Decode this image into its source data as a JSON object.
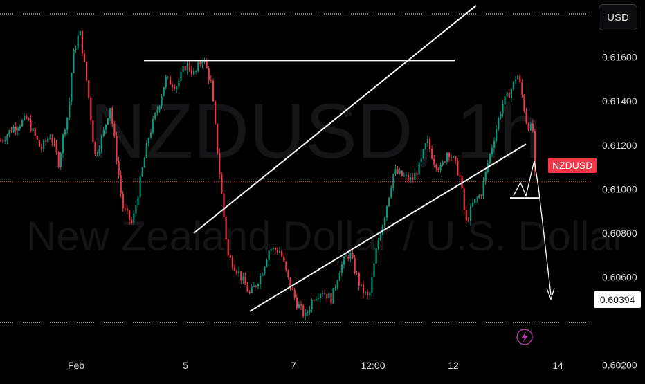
{
  "currency_button": "USD",
  "symbol_tag": "NZDUSD",
  "level_tag": "0.60394",
  "watermark": {
    "symbol": "NZDUSD, 1h",
    "name": "New Zealand Dollar / U.S. Dollar"
  },
  "colors": {
    "up": "#089981",
    "down": "#f23645",
    "line": "#ffffff",
    "background": "#000000"
  },
  "chart_data": {
    "type": "candlestick",
    "symbol": "NZDUSD",
    "interval": "1h",
    "y_ticks": [
      "0.61600",
      "0.61400",
      "0.61200",
      "0.61000",
      "0.60800",
      "0.60600",
      "0.60200"
    ],
    "x_ticks": [
      "Feb",
      "5",
      "7",
      "12:00",
      "12",
      "14"
    ],
    "ylim": [
      0.6013,
      0.6186
    ],
    "current_price": 0.61034,
    "horizontal_levels": [
      0.61797,
      0.60394
    ],
    "resistance_line": 0.61585,
    "trend_channel": {
      "upper": [
        [
          "5",
          0.608
        ],
        [
          "12:00 +",
          0.6184
        ]
      ],
      "lower": [
        [
          "6.5",
          0.6044
        ],
        [
          "13 +",
          0.612
        ]
      ]
    },
    "projection": {
      "from": 0.6096,
      "to": 0.605,
      "direction": "down"
    },
    "anchors": [
      [
        "Feb -",
        0.6122
      ],
      [
        "Feb -",
        0.6128
      ],
      [
        "Feb -",
        0.6132
      ],
      [
        "Feb -",
        0.6118
      ],
      [
        "Feb -",
        0.6125
      ],
      [
        "Feb -",
        0.6112
      ],
      [
        "Feb -",
        0.6128
      ],
      [
        "Feb -",
        0.6135
      ],
      [
        "Feb -",
        0.616
      ],
      [
        "Feb -",
        0.6172
      ],
      [
        "Feb",
        0.6145
      ],
      [
        "Feb",
        0.6115
      ],
      [
        "Feb",
        0.6125
      ],
      [
        "Feb +",
        0.6138
      ],
      [
        "Feb +",
        0.6118
      ],
      [
        "Feb +",
        0.6092
      ],
      [
        "Feb +",
        0.6084
      ],
      [
        "Feb +",
        0.6108
      ],
      [
        "Feb +",
        0.6124
      ],
      [
        "Feb +",
        0.6138
      ],
      [
        "Feb +",
        0.615
      ],
      [
        "Feb +",
        0.6147
      ],
      [
        "Feb +",
        0.6157
      ],
      [
        "Feb +",
        0.6152
      ],
      [
        "Feb +",
        0.616
      ],
      [
        "4",
        0.6148
      ],
      [
        "4",
        0.6108
      ],
      [
        "4",
        0.607
      ],
      [
        "5 -",
        0.6062
      ],
      [
        "5 -",
        0.6052
      ],
      [
        "5 -",
        0.6061
      ],
      [
        "5",
        0.6073
      ],
      [
        "5 +",
        0.6072
      ],
      [
        "5 +",
        0.6058
      ],
      [
        "5 +",
        0.6048
      ],
      [
        "5 +",
        0.6042
      ],
      [
        "6",
        0.6051
      ],
      [
        "6",
        0.6054
      ],
      [
        "6",
        0.605
      ],
      [
        "6 +",
        0.6064
      ],
      [
        "6 +",
        0.6071
      ],
      [
        "6.5",
        0.6055
      ],
      [
        "6.5",
        0.605
      ],
      [
        "7 -",
        0.6075
      ],
      [
        "7 -",
        0.609
      ],
      [
        "7",
        0.6108
      ],
      [
        "7",
        0.6106
      ],
      [
        "7 +",
        0.6104
      ],
      [
        "7 +",
        0.6111
      ],
      [
        "7 +",
        0.6122
      ],
      [
        "7.5",
        0.6113
      ],
      [
        "7.5",
        0.6109
      ],
      [
        "12:00 -",
        0.6118
      ],
      [
        "12:00 -",
        0.6112
      ],
      [
        "12:00 -",
        0.6105
      ],
      [
        "12:00",
        0.6084
      ],
      [
        "12:00 +",
        0.6093
      ],
      [
        "12:00 +",
        0.6098
      ],
      [
        "12:00 +",
        0.6112
      ],
      [
        "12:00 +",
        0.6125
      ],
      [
        "12 -",
        0.6138
      ],
      [
        "12 -",
        0.6142
      ],
      [
        "12 -",
        0.6147
      ],
      [
        "12 -",
        0.6153
      ],
      [
        "12",
        0.6145
      ],
      [
        "12",
        0.613
      ],
      [
        "12 +",
        0.6126
      ],
      [
        "12 +",
        0.6132
      ],
      [
        "12 +",
        0.6128
      ],
      [
        "13 -",
        0.6136
      ],
      [
        "13 -",
        0.613
      ],
      [
        "13",
        0.6124
      ],
      [
        "13",
        0.6118
      ],
      [
        "13 +",
        0.6101
      ],
      [
        "13 +",
        0.6106
      ],
      [
        "13 +",
        0.6103
      ]
    ]
  }
}
